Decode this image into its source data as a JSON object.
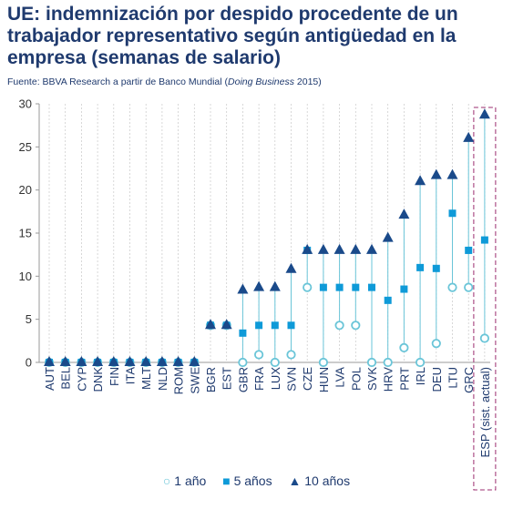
{
  "title": "UE: indemnización por despido procedente de un trabajador representativo según antigüedad en la empresa (semanas de salario)",
  "subtitle_prefix": "Fuente: BBVA Research a partir de Banco Mundial (",
  "subtitle_italic": "Doing Business",
  "subtitle_suffix": " 2015)",
  "colors": {
    "title": "#1f3a6e",
    "one_year": "#6ac5d8",
    "five_years": "#0e9ad8",
    "ten_years": "#1a4a8a",
    "connector": "#6ac5d8",
    "highlight_box": "#9b2d6f"
  },
  "legend": {
    "one_year": "1 año",
    "five_years": "5 años",
    "ten_years": "10 años"
  },
  "chart_data": {
    "type": "scatter",
    "title": "UE: indemnización por despido procedente de un trabajador representativo según antigüedad en la empresa (semanas de salario)",
    "ylim": [
      0,
      30
    ],
    "yticks": [
      0,
      5,
      10,
      15,
      20,
      25,
      30
    ],
    "grid": "vertical dashed",
    "legend_position": "bottom",
    "highlighted_category": "ESP (sist. actual)",
    "categories": [
      "AUT",
      "BEL",
      "CYP",
      "DNK",
      "FIN",
      "ITA",
      "MLT",
      "NLD",
      "ROM",
      "SWE",
      "BGR",
      "EST",
      "GBR",
      "FRA",
      "LUX",
      "SVN",
      "CZE",
      "HUN",
      "LVA",
      "POL",
      "SVK",
      "HRV",
      "PRT",
      "IRL",
      "DEU",
      "LTU",
      "GRC",
      "ESP (sist. actual)"
    ],
    "series": [
      {
        "name": "1 año",
        "marker": "circle",
        "values": [
          0,
          0,
          0,
          0,
          0,
          0,
          0,
          0,
          0,
          0,
          4.3,
          4.3,
          0,
          0.9,
          0,
          0.9,
          8.7,
          0,
          4.3,
          4.3,
          0,
          0,
          1.7,
          0,
          2.2,
          8.7,
          8.7,
          2.8
        ]
      },
      {
        "name": "5 años",
        "marker": "square",
        "values": [
          0,
          0,
          0,
          0,
          0,
          0,
          0,
          0,
          0,
          0,
          4.3,
          4.3,
          3.4,
          4.3,
          4.3,
          4.3,
          13,
          8.7,
          8.7,
          8.7,
          8.7,
          7.2,
          8.5,
          11,
          10.9,
          17.3,
          13,
          14.2
        ]
      },
      {
        "name": "10 años",
        "marker": "triangle",
        "values": [
          0,
          0,
          0,
          0,
          0,
          0,
          0,
          0,
          0,
          0,
          4.3,
          4.3,
          8.4,
          8.7,
          8.7,
          10.8,
          13,
          13,
          13,
          13,
          13,
          14.4,
          17.1,
          21,
          21.7,
          21.7,
          26,
          28.7
        ]
      }
    ]
  }
}
